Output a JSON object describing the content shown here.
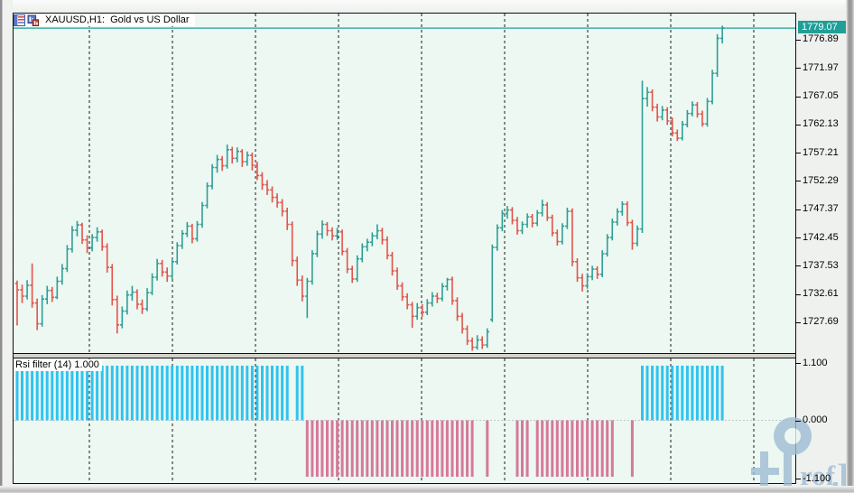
{
  "window": {
    "title": "XAUUSD,H1:  Gold vs US Dollar",
    "icons": [
      {
        "name": "market-watch-icon"
      },
      {
        "name": "chart-window-icon"
      }
    ]
  },
  "price_axis": {
    "current": "1779.07",
    "labels": [
      "1776.89",
      "1771.97",
      "1767.05",
      "1762.13",
      "1757.21",
      "1752.29",
      "1747.37",
      "1742.45",
      "1737.53",
      "1732.61",
      "1727.69"
    ]
  },
  "indicator": {
    "label": "Rsi filter (14) 1.000",
    "axis_labels": [
      "1.100",
      "0.000",
      "-1.100"
    ]
  },
  "watermark": {
    "full": "Prof.FX",
    "rof": "rof",
    "fx": "FX"
  },
  "colors": {
    "background": "#ecf8f1",
    "bull_bar": "#2f9e97",
    "bear_bar": "#e2544c",
    "price_line": "#1f9f98",
    "price_label_bg": "#1f9f98",
    "histogram_up": "#30c3ef",
    "histogram_down": "#d6799b",
    "grid": "#1c1c1c"
  },
  "chart_data": [
    {
      "type": "ohlc-bars",
      "symbol": "XAUUSD",
      "timeframe": "H1",
      "title": "Gold vs US Dollar",
      "current_price": 1779.07,
      "ylim": [
        1722.5,
        1781.6
      ],
      "y_ticks": [
        1776.89,
        1771.97,
        1767.05,
        1762.13,
        1757.21,
        1752.29,
        1747.37,
        1742.45,
        1737.53,
        1732.61,
        1727.69
      ],
      "grid": "vertical-dashed-only",
      "time_gridlines_x": [
        98,
        190,
        282,
        374,
        466,
        558,
        650,
        742,
        834
      ],
      "first_bar_x": 18,
      "bar_spacing_px": 5.54,
      "bars": [
        [
          1734.6,
          1735.1,
          1727.3,
          1733.5
        ],
        [
          1733.5,
          1734.4,
          1731.2,
          1732.4
        ],
        [
          1732.4,
          1735.2,
          1731.8,
          1734.3
        ],
        [
          1734.3,
          1738.1,
          1730.4,
          1731.2
        ],
        [
          1731.2,
          1732.0,
          1726.5,
          1727.6
        ],
        [
          1727.6,
          1732.6,
          1727.1,
          1731.9
        ],
        [
          1731.9,
          1734.2,
          1731.0,
          1733.4
        ],
        [
          1733.4,
          1734.0,
          1731.4,
          1732.2
        ],
        [
          1732.2,
          1735.8,
          1731.9,
          1735.0
        ],
        [
          1735.0,
          1738.0,
          1734.4,
          1737.2
        ],
        [
          1737.2,
          1741.3,
          1736.6,
          1740.6
        ],
        [
          1740.6,
          1744.6,
          1740.0,
          1743.9
        ],
        [
          1743.9,
          1745.5,
          1742.8,
          1744.8
        ],
        [
          1744.8,
          1745.2,
          1741.5,
          1742.2
        ],
        [
          1742.2,
          1743.0,
          1739.9,
          1740.8
        ],
        [
          1740.8,
          1743.2,
          1740.2,
          1742.6
        ],
        [
          1742.6,
          1744.4,
          1741.9,
          1743.6
        ],
        [
          1743.6,
          1744.0,
          1740.3,
          1741.0
        ],
        [
          1741.0,
          1741.6,
          1736.5,
          1737.4
        ],
        [
          1737.4,
          1738.0,
          1730.8,
          1731.8
        ],
        [
          1731.8,
          1732.5,
          1725.9,
          1727.4
        ],
        [
          1727.4,
          1730.6,
          1726.8,
          1729.8
        ],
        [
          1729.8,
          1733.4,
          1729.2,
          1732.6
        ],
        [
          1732.6,
          1734.2,
          1731.6,
          1733.1
        ],
        [
          1733.1,
          1733.6,
          1730.1,
          1731.0
        ],
        [
          1731.0,
          1731.8,
          1729.3,
          1730.2
        ],
        [
          1730.2,
          1733.8,
          1729.8,
          1733.0
        ],
        [
          1733.0,
          1736.4,
          1732.6,
          1735.7
        ],
        [
          1735.7,
          1738.9,
          1735.1,
          1738.1
        ],
        [
          1738.1,
          1738.7,
          1735.8,
          1736.6
        ],
        [
          1736.6,
          1737.4,
          1734.9,
          1735.9
        ],
        [
          1735.9,
          1739.0,
          1735.4,
          1738.4
        ],
        [
          1738.4,
          1741.8,
          1737.9,
          1741.2
        ],
        [
          1741.2,
          1743.9,
          1740.6,
          1743.3
        ],
        [
          1743.3,
          1745.3,
          1742.7,
          1744.6
        ],
        [
          1744.6,
          1745.0,
          1741.6,
          1742.4
        ],
        [
          1742.4,
          1745.5,
          1741.9,
          1744.9
        ],
        [
          1744.9,
          1748.8,
          1744.3,
          1748.2
        ],
        [
          1748.2,
          1752.2,
          1747.7,
          1751.6
        ],
        [
          1751.6,
          1755.4,
          1751.0,
          1754.8
        ],
        [
          1754.8,
          1757.0,
          1753.9,
          1756.2
        ],
        [
          1756.2,
          1756.8,
          1754.2,
          1755.1
        ],
        [
          1755.1,
          1758.8,
          1754.6,
          1757.9
        ],
        [
          1757.9,
          1758.4,
          1755.5,
          1756.4
        ],
        [
          1756.4,
          1758.3,
          1755.7,
          1757.6
        ],
        [
          1757.6,
          1758.0,
          1754.9,
          1755.8
        ],
        [
          1755.8,
          1757.6,
          1755.1,
          1756.9
        ],
        [
          1756.9,
          1757.4,
          1754.3,
          1755.2
        ],
        [
          1755.2,
          1755.8,
          1752.6,
          1753.4
        ],
        [
          1753.4,
          1754.0,
          1750.9,
          1751.8
        ],
        [
          1751.8,
          1752.6,
          1750.0,
          1750.9
        ],
        [
          1750.9,
          1751.5,
          1748.7,
          1749.6
        ],
        [
          1749.6,
          1750.3,
          1747.8,
          1748.7
        ],
        [
          1748.7,
          1749.3,
          1746.3,
          1747.2
        ],
        [
          1747.2,
          1747.8,
          1743.9,
          1744.9
        ],
        [
          1744.9,
          1745.4,
          1737.6,
          1738.6
        ],
        [
          1738.6,
          1739.3,
          1734.2,
          1735.2
        ],
        [
          1735.2,
          1736.0,
          1731.5,
          1732.4
        ],
        [
          1732.4,
          1735.6,
          1728.6,
          1735.0
        ],
        [
          1735.0,
          1740.4,
          1734.4,
          1739.8
        ],
        [
          1739.8,
          1743.8,
          1739.2,
          1743.2
        ],
        [
          1743.2,
          1745.6,
          1742.4,
          1744.9
        ],
        [
          1744.9,
          1745.3,
          1742.9,
          1743.8
        ],
        [
          1743.8,
          1744.4,
          1742.1,
          1742.9
        ],
        [
          1742.9,
          1744.3,
          1742.2,
          1743.6
        ],
        [
          1743.6,
          1744.0,
          1739.5,
          1740.2
        ],
        [
          1740.2,
          1740.8,
          1736.4,
          1737.1
        ],
        [
          1737.1,
          1737.7,
          1734.7,
          1735.4
        ],
        [
          1735.4,
          1739.5,
          1734.9,
          1738.9
        ],
        [
          1738.9,
          1741.6,
          1738.3,
          1741.0
        ],
        [
          1741.0,
          1742.4,
          1740.2,
          1741.8
        ],
        [
          1741.8,
          1743.5,
          1741.1,
          1742.9
        ],
        [
          1742.9,
          1744.9,
          1742.3,
          1743.8
        ],
        [
          1743.8,
          1744.3,
          1741.4,
          1742.2
        ],
        [
          1742.2,
          1742.8,
          1738.8,
          1739.5
        ],
        [
          1739.5,
          1740.1,
          1736.0,
          1736.8
        ],
        [
          1736.8,
          1737.4,
          1733.5,
          1734.2
        ],
        [
          1734.2,
          1734.8,
          1731.6,
          1732.3
        ],
        [
          1732.3,
          1732.9,
          1730.1,
          1730.9
        ],
        [
          1730.9,
          1731.4,
          1726.9,
          1728.9
        ],
        [
          1728.9,
          1731.2,
          1728.3,
          1730.4
        ],
        [
          1730.4,
          1731.0,
          1728.8,
          1729.6
        ],
        [
          1729.6,
          1731.9,
          1729.1,
          1731.2
        ],
        [
          1731.2,
          1733.1,
          1730.6,
          1732.4
        ],
        [
          1732.4,
          1733.0,
          1731.2,
          1732.0
        ],
        [
          1732.0,
          1734.7,
          1731.5,
          1734.1
        ],
        [
          1734.1,
          1735.6,
          1733.4,
          1735.3
        ],
        [
          1735.3,
          1735.8,
          1730.9,
          1731.6
        ],
        [
          1731.6,
          1732.2,
          1728.1,
          1728.9
        ],
        [
          1728.9,
          1729.5,
          1725.9,
          1726.7
        ],
        [
          1726.7,
          1727.3,
          1723.9,
          1724.6
        ],
        [
          1724.6,
          1725.2,
          1722.9,
          1723.5
        ],
        [
          1723.5,
          1725.6,
          1723.1,
          1724.8
        ],
        [
          1724.8,
          1725.4,
          1723.2,
          1723.9
        ],
        [
          1723.9,
          1726.8,
          1723.4,
          1726.2
        ],
        [
          1728.3,
          1741.4,
          1727.9,
          1740.9
        ],
        [
          1740.9,
          1744.9,
          1740.3,
          1744.3
        ],
        [
          1744.3,
          1747.4,
          1743.7,
          1746.8
        ],
        [
          1746.8,
          1748.1,
          1745.9,
          1747.4
        ],
        [
          1747.4,
          1747.9,
          1744.9,
          1745.6
        ],
        [
          1745.6,
          1746.2,
          1743.1,
          1743.8
        ],
        [
          1743.8,
          1745.4,
          1743.2,
          1744.9
        ],
        [
          1744.9,
          1746.8,
          1744.3,
          1746.2
        ],
        [
          1746.2,
          1746.7,
          1744.4,
          1745.1
        ],
        [
          1745.1,
          1747.4,
          1744.6,
          1746.9
        ],
        [
          1746.9,
          1749.2,
          1746.3,
          1748.3
        ],
        [
          1748.3,
          1748.8,
          1745.5,
          1746.1
        ],
        [
          1746.1,
          1746.6,
          1742.8,
          1743.4
        ],
        [
          1743.4,
          1744.0,
          1741.2,
          1741.9
        ],
        [
          1741.9,
          1745.1,
          1741.4,
          1744.6
        ],
        [
          1744.6,
          1747.8,
          1744.1,
          1747.2
        ],
        [
          1747.2,
          1747.7,
          1737.6,
          1738.4
        ],
        [
          1738.4,
          1739.0,
          1734.9,
          1735.6
        ],
        [
          1735.6,
          1736.3,
          1733.2,
          1734.2
        ],
        [
          1734.2,
          1736.4,
          1733.7,
          1735.8
        ],
        [
          1735.8,
          1737.7,
          1735.2,
          1737.1
        ],
        [
          1737.1,
          1737.6,
          1735.4,
          1736.2
        ],
        [
          1736.2,
          1740.4,
          1735.7,
          1739.8
        ],
        [
          1739.8,
          1743.2,
          1739.3,
          1742.6
        ],
        [
          1742.6,
          1745.9,
          1742.1,
          1745.3
        ],
        [
          1745.3,
          1747.7,
          1744.7,
          1747.1
        ],
        [
          1747.1,
          1748.9,
          1746.4,
          1748.4
        ],
        [
          1748.4,
          1748.9,
          1744.6,
          1745.2
        ],
        [
          1745.2,
          1745.7,
          1740.5,
          1741.6
        ],
        [
          1741.6,
          1744.7,
          1741.1,
          1744.1
        ],
        [
          1744.1,
          1769.9,
          1743.4,
          1766.8
        ],
        [
          1766.8,
          1768.8,
          1765.4,
          1767.9
        ],
        [
          1767.9,
          1768.4,
          1764.6,
          1765.3
        ],
        [
          1765.3,
          1765.9,
          1762.8,
          1763.6
        ],
        [
          1763.6,
          1765.5,
          1763.0,
          1764.8
        ],
        [
          1764.8,
          1765.3,
          1762.2,
          1762.9
        ],
        [
          1762.9,
          1763.5,
          1760.2,
          1760.8
        ],
        [
          1760.8,
          1761.4,
          1759.4,
          1759.9
        ],
        [
          1759.9,
          1762.9,
          1759.5,
          1762.3
        ],
        [
          1762.3,
          1764.8,
          1761.8,
          1764.2
        ],
        [
          1764.2,
          1766.3,
          1763.7,
          1765.7
        ],
        [
          1765.7,
          1766.2,
          1763.5,
          1764.1
        ],
        [
          1764.1,
          1764.7,
          1761.9,
          1762.4
        ],
        [
          1762.4,
          1766.9,
          1761.9,
          1766.3
        ],
        [
          1766.3,
          1771.8,
          1765.8,
          1771.2
        ],
        [
          1771.2,
          1778.0,
          1770.6,
          1777.3
        ],
        [
          1777.3,
          1779.5,
          1776.4,
          1779.1
        ]
      ]
    },
    {
      "type": "bar",
      "name": "Rsi filter",
      "period": 14,
      "current_value": 1.0,
      "levels": [
        1.1,
        0.0,
        -1.1
      ],
      "ylim": [
        -1.1,
        1.1
      ],
      "values": [
        1,
        1,
        1,
        1,
        1,
        1,
        1,
        1,
        1,
        1,
        1,
        1,
        1,
        1,
        1,
        1,
        1,
        1,
        1,
        1,
        1,
        1,
        1,
        1,
        1,
        1,
        1,
        1,
        1,
        1,
        1,
        1,
        1,
        1,
        1,
        1,
        1,
        1,
        1,
        1,
        1,
        1,
        1,
        1,
        1,
        1,
        1,
        1,
        1,
        1,
        1,
        1,
        1,
        1,
        1,
        0,
        1,
        1,
        -1,
        -1,
        -1,
        -1,
        -1,
        -1,
        -1,
        -1,
        -1,
        -1,
        -1,
        -1,
        -1,
        -1,
        -1,
        -1,
        -1,
        -1,
        -1,
        -1,
        -1,
        -1,
        -1,
        -1,
        -1,
        -1,
        -1,
        -1,
        -1,
        -1,
        -1,
        -1,
        -1,
        -1,
        0,
        0,
        -1,
        0,
        0,
        0,
        0,
        0,
        -1,
        -1,
        -1,
        0,
        -1,
        -1,
        -1,
        -1,
        -1,
        -1,
        -1,
        -1,
        -1,
        -1,
        -1,
        -1,
        -1,
        -1,
        -1,
        -1,
        0,
        0,
        0,
        -1,
        0,
        1,
        1,
        1,
        1,
        1,
        1,
        1,
        1,
        1,
        1,
        1,
        1,
        1,
        1,
        1,
        1,
        1
      ]
    }
  ]
}
